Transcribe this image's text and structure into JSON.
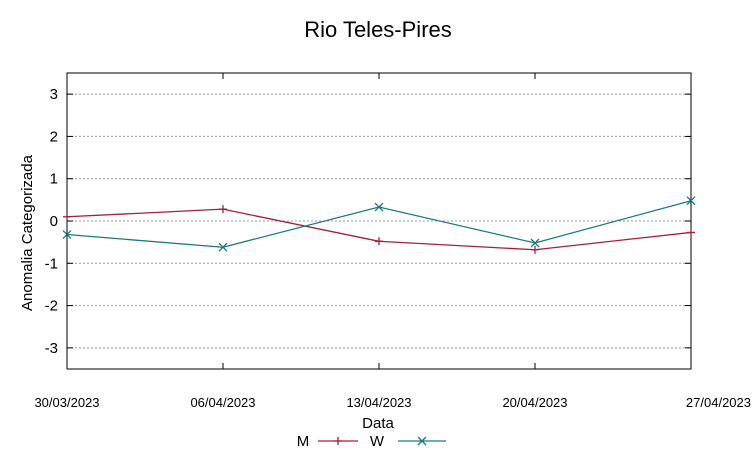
{
  "chart_data": {
    "type": "line",
    "title": "Rio Teles-Pires",
    "xlabel": "Data",
    "ylabel": "Anomalia Categorizada",
    "categories": [
      "30/03/2023",
      "06/04/2023",
      "13/04/2023",
      "20/04/2023",
      "27/04/2023"
    ],
    "ylim": [
      -3.5,
      3.5
    ],
    "yticks": [
      "3",
      "2",
      "1",
      "0",
      "-1",
      "-2",
      "-3"
    ],
    "grid": true,
    "legend_position": "bottom-center",
    "series": [
      {
        "name": "M",
        "color": "#a0213a",
        "marker": "plus",
        "values": [
          0.1,
          0.28,
          -0.48,
          -0.68,
          -0.27
        ]
      },
      {
        "name": "W",
        "color": "#1d7a7a",
        "marker": "x",
        "values": [
          -0.32,
          -0.62,
          0.33,
          -0.52,
          0.48
        ]
      }
    ]
  }
}
